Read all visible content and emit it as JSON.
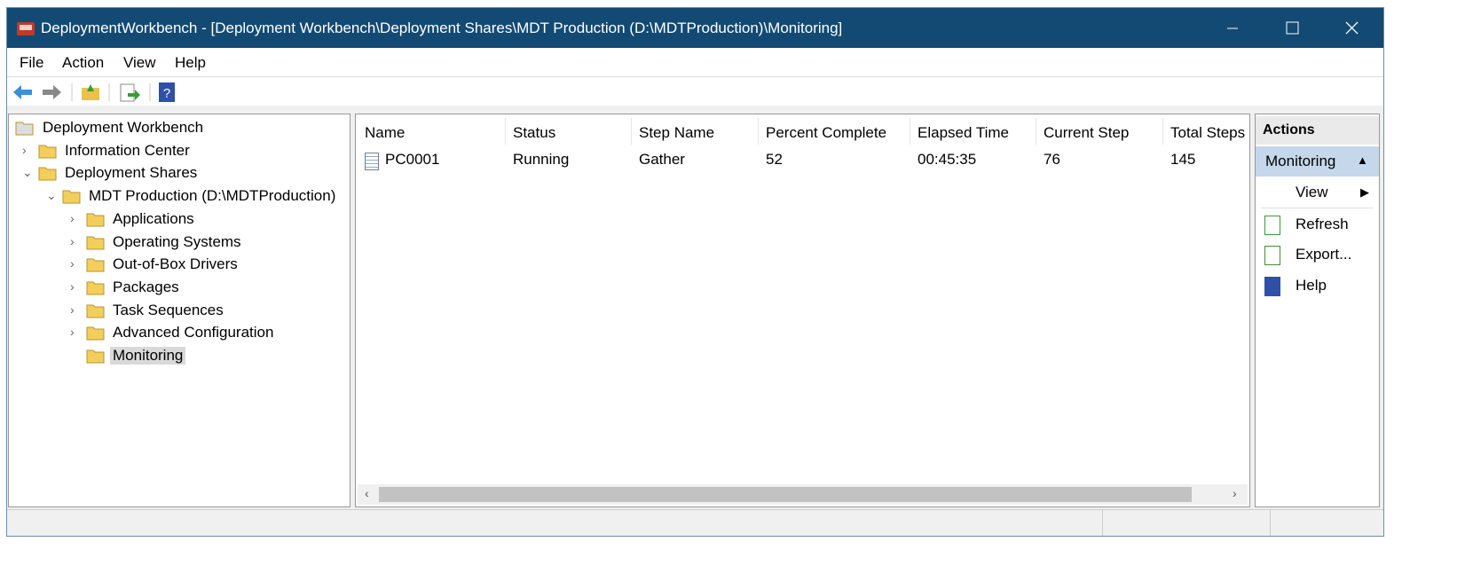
{
  "window": {
    "title": "DeploymentWorkbench - [Deployment Workbench\\Deployment Shares\\MDT Production (D:\\MDTProduction)\\Monitoring]"
  },
  "menu": [
    "File",
    "Action",
    "View",
    "Help"
  ],
  "tree": {
    "label": "Deployment Workbench",
    "children": [
      {
        "label": "Information Center"
      },
      {
        "label": "Deployment Shares",
        "children": [
          {
            "label": "MDT Production (D:\\MDTProduction)",
            "children": [
              {
                "label": "Applications"
              },
              {
                "label": "Operating Systems"
              },
              {
                "label": "Out-of-Box Drivers"
              },
              {
                "label": "Packages"
              },
              {
                "label": "Task Sequences"
              },
              {
                "label": "Advanced Configuration"
              },
              {
                "label": "Monitoring",
                "selected": true
              }
            ]
          }
        ]
      }
    ]
  },
  "table": {
    "columns": [
      "Name",
      "Status",
      "Step Name",
      "Percent Complete",
      "Elapsed Time",
      "Current Step",
      "Total Steps"
    ],
    "rows": [
      [
        "PC0001",
        "Running",
        "Gather",
        "52",
        "00:45:35",
        "76",
        "145"
      ]
    ]
  },
  "actions": {
    "title": "Actions",
    "section": "Monitoring",
    "items": [
      "View",
      "Refresh",
      "Export...",
      "Help"
    ]
  }
}
